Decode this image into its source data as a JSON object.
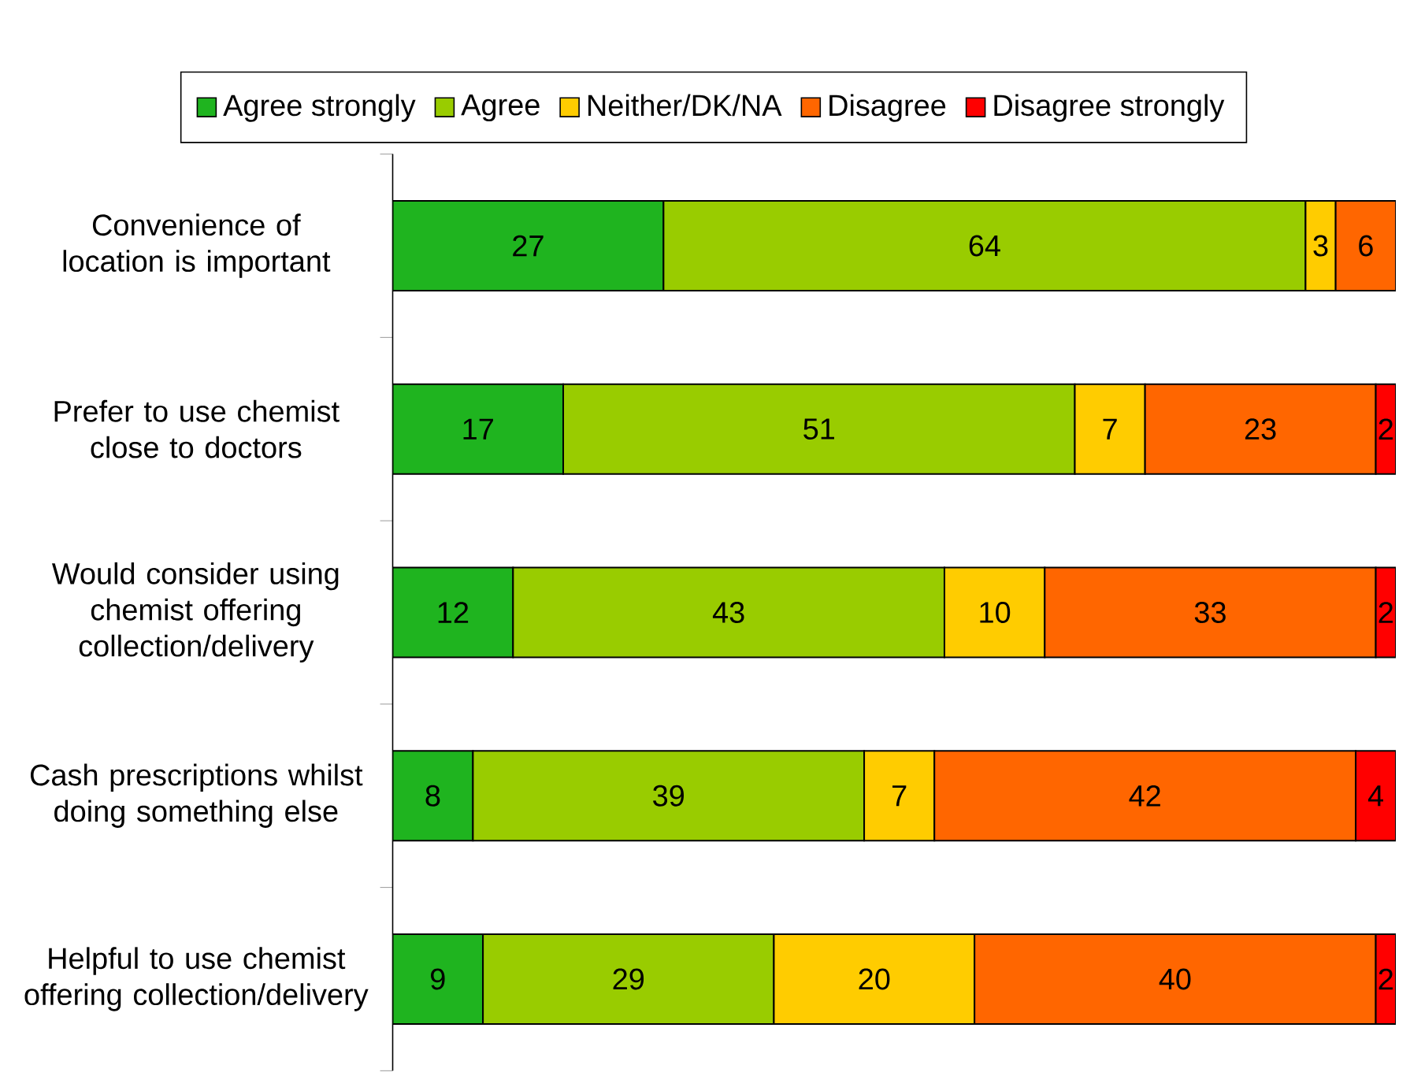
{
  "chart_data": {
    "type": "bar",
    "orientation": "horizontal",
    "stacked": true,
    "data_labels": true,
    "legend": "top",
    "tick_labels": "y",
    "categories": [
      "Convenience of location is important",
      "Prefer to use chemist close to doctors",
      "Would consider using chemist offering collection/delivery",
      "Cash prescriptions whilst doing something else",
      "Helpful to use chemist offering collection/delivery"
    ],
    "series": [
      {
        "name": "Agree strongly",
        "color": "#1fb41f",
        "values": [
          27,
          17,
          12,
          8,
          9
        ]
      },
      {
        "name": "Agree",
        "color": "#99cc00",
        "values": [
          64,
          51,
          43,
          39,
          29
        ]
      },
      {
        "name": "Neither/DK/NA",
        "color": "#ffcc00",
        "values": [
          3,
          7,
          10,
          7,
          20
        ]
      },
      {
        "name": "Disagree",
        "color": "#ff6600",
        "values": [
          6,
          23,
          33,
          42,
          40
        ]
      },
      {
        "name": "Disagree strongly",
        "color": "#ff0000",
        "values": [
          null,
          2,
          2,
          4,
          2
        ]
      }
    ]
  }
}
